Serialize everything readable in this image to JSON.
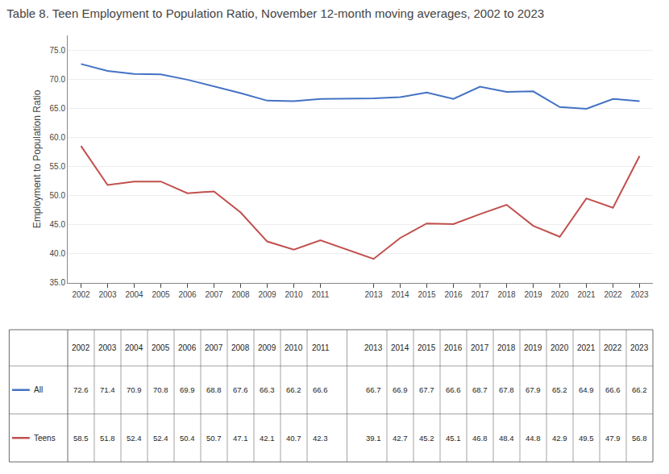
{
  "chart_data": {
    "type": "line",
    "title": "Table 8. Teen Employment to Population Ratio, November 12-month moving averages, 2002 to 2023",
    "ylabel": "Employment to Population Ratio",
    "x": [
      2002,
      2003,
      2004,
      2005,
      2006,
      2007,
      2008,
      2009,
      2010,
      2011,
      2013,
      2014,
      2015,
      2016,
      2017,
      2018,
      2019,
      2020,
      2021,
      2022,
      2023
    ],
    "series": [
      {
        "name": "All",
        "color": "#4472C4",
        "values": [
          72.6,
          71.4,
          70.9,
          70.8,
          69.9,
          68.8,
          67.6,
          66.3,
          66.2,
          66.6,
          66.7,
          66.9,
          67.7,
          66.6,
          68.7,
          67.8,
          67.9,
          65.2,
          64.9,
          66.6,
          66.2
        ]
      },
      {
        "name": "Teens",
        "color": "#C0504D",
        "values": [
          58.5,
          51.8,
          52.4,
          52.4,
          50.4,
          50.7,
          47.1,
          42.1,
          40.7,
          42.3,
          39.1,
          42.7,
          45.2,
          45.1,
          46.8,
          48.4,
          44.8,
          42.9,
          49.5,
          47.9,
          56.8
        ]
      }
    ],
    "xlim": [
      2001.5,
      2023.5
    ],
    "xticks": [
      2002,
      2003,
      2004,
      2005,
      2006,
      2007,
      2008,
      2009,
      2010,
      2011,
      2013,
      2014,
      2015,
      2016,
      2017,
      2018,
      2019,
      2020,
      2021,
      2022,
      2023
    ],
    "ylim": [
      35.0,
      77.5
    ],
    "yticks": [
      {
        "value": 35.0,
        "label": "35.0"
      },
      {
        "value": 40.0,
        "label": "40.0"
      },
      {
        "value": 45.0,
        "label": "45.0"
      },
      {
        "value": 50.0,
        "label": "50.0"
      },
      {
        "value": 55.0,
        "label": "55.0"
      },
      {
        "value": 60.0,
        "label": "60.0"
      },
      {
        "value": 65.0,
        "label": "65.0"
      },
      {
        "value": 70.0,
        "label": "70.0"
      },
      {
        "value": 75.0,
        "label": "75.0"
      }
    ],
    "grid": true,
    "data_labels": true
  }
}
